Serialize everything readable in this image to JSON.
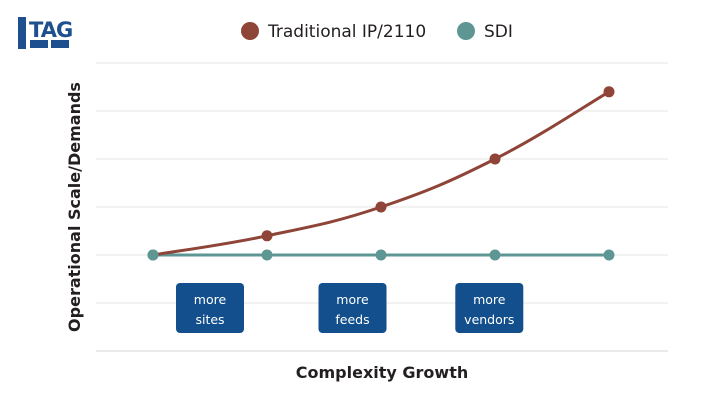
{
  "logo": {
    "text": "TAG",
    "color": "#1e4f8f"
  },
  "chart_data": {
    "type": "line",
    "title": "",
    "xlabel": "Complexity Growth",
    "ylabel": "Operational Scale/Demands",
    "x": [
      1,
      2,
      3,
      4,
      5
    ],
    "ylim": [
      0,
      6
    ],
    "xlim": [
      0.5,
      5.5
    ],
    "grid": true,
    "legend": "top-center",
    "series": [
      {
        "name": "Traditional IP/2110",
        "color": "#8e4436",
        "smooth": true,
        "values": [
          2,
          2.4,
          3,
          4,
          5.4
        ]
      },
      {
        "name": "SDI",
        "color": "#5e9694",
        "smooth": false,
        "values": [
          2,
          2,
          2,
          2,
          2
        ]
      }
    ],
    "annotations": [
      {
        "lines": [
          "more",
          "sites"
        ],
        "x": 1.5,
        "color": "#124f8c"
      },
      {
        "lines": [
          "more",
          "feeds"
        ],
        "x": 2.75,
        "color": "#124f8c"
      },
      {
        "lines": [
          "more",
          "vendors"
        ],
        "x": 3.95,
        "color": "#124f8c"
      }
    ]
  }
}
